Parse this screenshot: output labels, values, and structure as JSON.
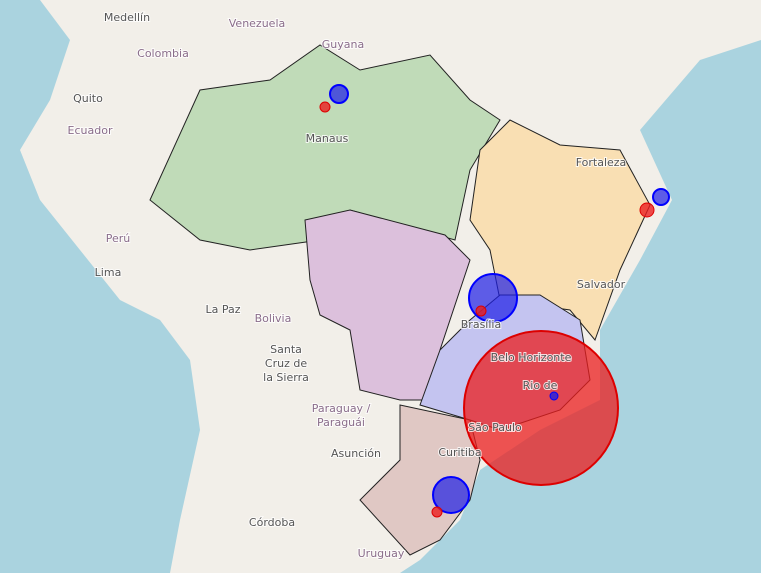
{
  "labels": [
    {
      "lines": [
        "Medellín"
      ]
    },
    {
      "lines": [
        "Venezuela"
      ]
    },
    {
      "lines": [
        "Guyana"
      ]
    },
    {
      "lines": [
        "Colombia"
      ]
    },
    {
      "lines": [
        "Quito"
      ]
    },
    {
      "lines": [
        "Ecuador"
      ]
    },
    {
      "lines": [
        "Manaus"
      ]
    },
    {
      "lines": [
        "Fortaleza"
      ]
    },
    {
      "lines": [
        "Perú"
      ]
    },
    {
      "lines": [
        "Lima"
      ]
    },
    {
      "lines": [
        "Brasília"
      ]
    },
    {
      "lines": [
        "La Paz"
      ]
    },
    {
      "lines": [
        "Bolivia"
      ]
    },
    {
      "lines": [
        "Santa",
        "Cruz de",
        "la Sierra"
      ]
    },
    {
      "lines": [
        "Salvador"
      ]
    },
    {
      "lines": [
        "Belo Horizonte"
      ]
    },
    {
      "lines": [
        "Rio de"
      ]
    },
    {
      "lines": [
        "São Paulo"
      ]
    },
    {
      "lines": [
        "Curitiba"
      ]
    },
    {
      "lines": [
        "Paraguay /",
        "Paraguái"
      ]
    },
    {
      "lines": [
        "Asunción"
      ]
    },
    {
      "lines": [
        "Córdoba"
      ]
    },
    {
      "lines": [
        "Uruguay"
      ]
    }
  ]
}
